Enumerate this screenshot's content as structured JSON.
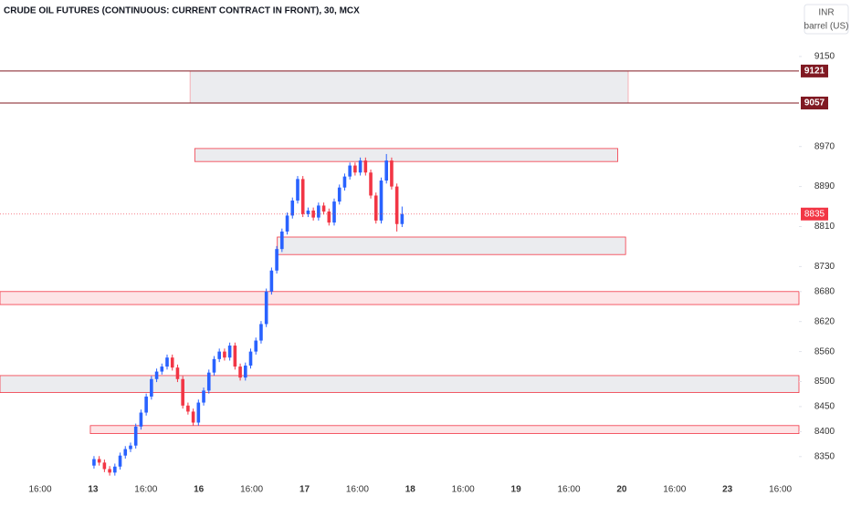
{
  "chart_data": {
    "type": "candlestick",
    "title": "CRUDE OIL FUTURES (CONTINUOUS: CURRENT CONTRACT IN FRONT), 30, MCX",
    "currency": "INR",
    "unit": "barrel (US)",
    "up_color": "#2962ff",
    "down_color": "#f23645",
    "xlim": [
      -18,
      135
    ],
    "ylim": [
      8315,
      9263
    ],
    "yticks": [
      8350,
      8400,
      8450,
      8500,
      8560,
      8620,
      8680,
      8730,
      8810,
      8890,
      8970,
      9150
    ],
    "xtick_labels": [
      "16:00",
      "13",
      "16:00",
      "16",
      "16:00",
      "17",
      "16:00",
      "18",
      "16:00",
      "19",
      "16:00",
      "20",
      "16:00",
      "23",
      "16:00"
    ],
    "last_price": 8835,
    "price_tags": [
      9121,
      9057
    ],
    "tag_color": "#801922",
    "zones": [
      {
        "x": [
          18.4,
          102.3
        ],
        "y": [
          9057,
          9121
        ],
        "fill": "#ebecef",
        "stroke": "#f7a1a8"
      },
      {
        "x": [
          19.3,
          100.3
        ],
        "y": [
          8940,
          8966
        ],
        "fill": "#ebecef",
        "stroke": "#f23645"
      },
      {
        "x": [
          35.1,
          101.8
        ],
        "y": [
          8754,
          8789
        ],
        "fill": "#ebecef",
        "stroke": "#f23645"
      },
      {
        "x": [
          -18,
          135
        ],
        "y": [
          8654,
          8680
        ],
        "fill": "#fde4e6",
        "stroke": "#f23645"
      },
      {
        "x": [
          -18,
          135
        ],
        "y": [
          8478,
          8512
        ],
        "fill": "#ebecef",
        "stroke": "#f23645"
      },
      {
        "x": [
          -0.7,
          135
        ],
        "y": [
          8396,
          8412
        ],
        "fill": "#fde4e6",
        "stroke": "#f23645"
      }
    ],
    "ohlc": [
      [
        8332,
        8351,
        8326,
        8345
      ],
      [
        8345,
        8351,
        8332,
        8338
      ],
      [
        8338,
        8344,
        8319,
        8325
      ],
      [
        8325,
        8331,
        8312,
        8318
      ],
      [
        8318,
        8336,
        8312,
        8330
      ],
      [
        8330,
        8358,
        8324,
        8352
      ],
      [
        8352,
        8371,
        8346,
        8365
      ],
      [
        8365,
        8378,
        8359,
        8372
      ],
      [
        8372,
        8416,
        8366,
        8410
      ],
      [
        8410,
        8444,
        8404,
        8438
      ],
      [
        8438,
        8476,
        8432,
        8470
      ],
      [
        8470,
        8511,
        8464,
        8505
      ],
      [
        8505,
        8526,
        8499,
        8520
      ],
      [
        8520,
        8536,
        8514,
        8530
      ],
      [
        8530,
        8554,
        8524,
        8548
      ],
      [
        8548,
        8554,
        8522,
        8528
      ],
      [
        8528,
        8534,
        8499,
        8505
      ],
      [
        8505,
        8511,
        8446,
        8452
      ],
      [
        8452,
        8458,
        8434,
        8440
      ],
      [
        8440,
        8446,
        8412,
        8418
      ],
      [
        8418,
        8464,
        8412,
        8458
      ],
      [
        8458,
        8488,
        8452,
        8482
      ],
      [
        8482,
        8524,
        8476,
        8518
      ],
      [
        8518,
        8551,
        8512,
        8545
      ],
      [
        8545,
        8566,
        8539,
        8560
      ],
      [
        8560,
        8566,
        8542,
        8548
      ],
      [
        8548,
        8578,
        8542,
        8572
      ],
      [
        8572,
        8578,
        8524,
        8530
      ],
      [
        8530,
        8536,
        8502,
        8508
      ],
      [
        8508,
        8538,
        8502,
        8532
      ],
      [
        8532,
        8566,
        8526,
        8560
      ],
      [
        8560,
        8588,
        8554,
        8582
      ],
      [
        8582,
        8621,
        8576,
        8615
      ],
      [
        8615,
        8686,
        8609,
        8680
      ],
      [
        8680,
        8728,
        8674,
        8722
      ],
      [
        8722,
        8771,
        8716,
        8765
      ],
      [
        8765,
        8806,
        8759,
        8800
      ],
      [
        8800,
        8838,
        8794,
        8832
      ],
      [
        8832,
        8868,
        8826,
        8862
      ],
      [
        8862,
        8911,
        8856,
        8905
      ],
      [
        8905,
        8911,
        8829,
        8835
      ],
      [
        8835,
        8848,
        8829,
        8842
      ],
      [
        8842,
        8848,
        8822,
        8828
      ],
      [
        8828,
        8858,
        8822,
        8852
      ],
      [
        8852,
        8858,
        8834,
        8840
      ],
      [
        8840,
        8846,
        8812,
        8818
      ],
      [
        8818,
        8866,
        8812,
        8860
      ],
      [
        8860,
        8894,
        8854,
        8888
      ],
      [
        8888,
        8916,
        8882,
        8910
      ],
      [
        8910,
        8938,
        8904,
        8932
      ],
      [
        8932,
        8938,
        8912,
        8918
      ],
      [
        8918,
        8948,
        8912,
        8942
      ],
      [
        8942,
        8948,
        8912,
        8918
      ],
      [
        8918,
        8924,
        8866,
        8872
      ],
      [
        8872,
        8878,
        8816,
        8822
      ],
      [
        8822,
        8908,
        8816,
        8902
      ],
      [
        8902,
        8955,
        8896,
        8942
      ],
      [
        8942,
        8948,
        8884,
        8890
      ],
      [
        8890,
        8896,
        8800,
        8815
      ],
      [
        8815,
        8850,
        8809,
        8835
      ]
    ]
  }
}
